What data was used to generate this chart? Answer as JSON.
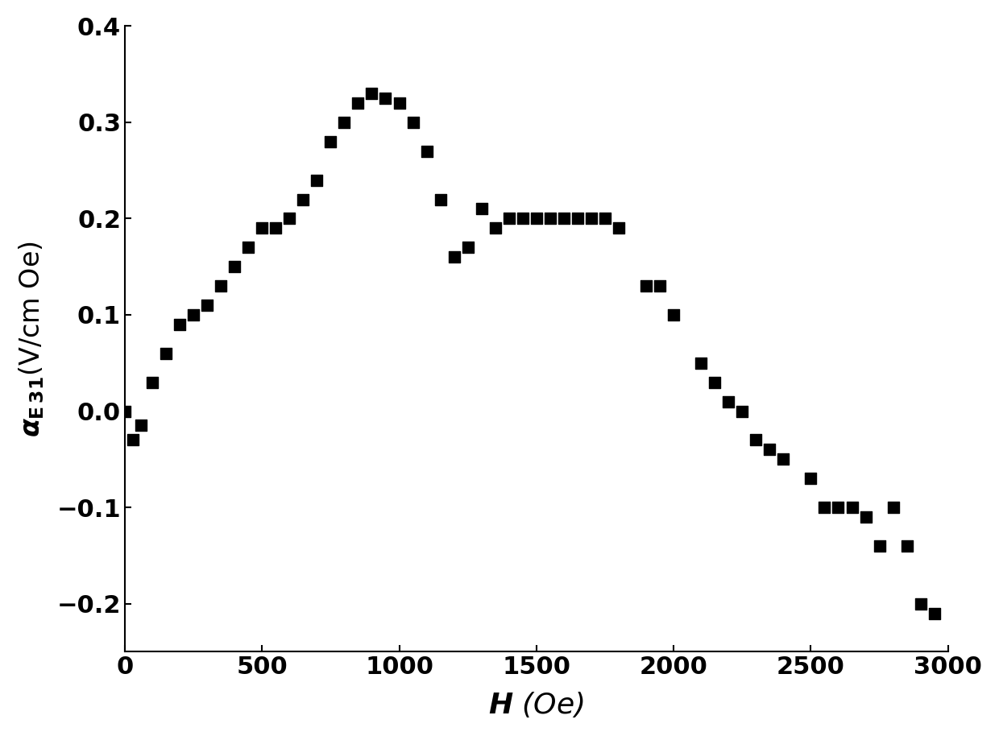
{
  "x": [
    0,
    30,
    60,
    100,
    150,
    200,
    250,
    300,
    350,
    400,
    450,
    500,
    550,
    600,
    650,
    700,
    750,
    800,
    850,
    900,
    950,
    1000,
    1050,
    1100,
    1150,
    1200,
    1250,
    1300,
    1350,
    1400,
    1450,
    1500,
    1550,
    1600,
    1650,
    1700,
    1750,
    1800,
    1900,
    1950,
    2000,
    2100,
    2150,
    2200,
    2250,
    2300,
    2350,
    2400,
    2500,
    2550,
    2600,
    2650,
    2700,
    2750,
    2800,
    2850,
    2900,
    2950
  ],
  "y": [
    0.0,
    -0.03,
    -0.015,
    0.03,
    0.06,
    0.09,
    0.1,
    0.11,
    0.13,
    0.15,
    0.17,
    0.19,
    0.19,
    0.2,
    0.22,
    0.24,
    0.28,
    0.3,
    0.32,
    0.33,
    0.325,
    0.32,
    0.3,
    0.27,
    0.22,
    0.16,
    0.17,
    0.21,
    0.19,
    0.2,
    0.2,
    0.2,
    0.2,
    0.2,
    0.2,
    0.2,
    0.2,
    0.19,
    0.13,
    0.13,
    0.1,
    0.05,
    0.03,
    0.01,
    0.0,
    -0.03,
    -0.04,
    -0.05,
    -0.07,
    -0.1,
    -0.1,
    -0.1,
    -0.11,
    -0.14,
    -0.1,
    -0.14,
    -0.2,
    -0.21
  ],
  "marker_size": 100,
  "marker_color": "black",
  "xlabel": "$\\mathit{H}$ (Oe)",
  "ylabel": "$\\alpha_{\\mathrm{E\\,31}}$(V/cm Oe)",
  "xlim": [
    0,
    3000
  ],
  "ylim": [
    -0.25,
    0.4
  ],
  "xticks": [
    0,
    500,
    1000,
    1500,
    2000,
    2500,
    3000
  ],
  "yticks": [
    -0.2,
    -0.1,
    0.0,
    0.1,
    0.2,
    0.3,
    0.4
  ],
  "xlabel_fontsize": 26,
  "ylabel_fontsize": 24,
  "tick_fontsize": 22,
  "background_color": "#ffffff",
  "spine_color": "#000000"
}
